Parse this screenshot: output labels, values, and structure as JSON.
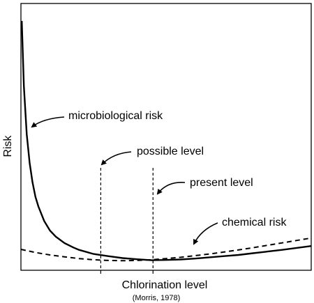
{
  "chart_data": {
    "type": "line",
    "title": "",
    "xlabel": "Chlorination level",
    "ylabel": "Risk",
    "source_note": "(Morris, 1978)",
    "grid": false,
    "axis_ticks": false,
    "xlim": [
      0,
      100
    ],
    "ylim": [
      0,
      100
    ],
    "series": [
      {
        "name": "microbiological risk",
        "style": "solid",
        "color": "#000000",
        "x": [
          0.3,
          1,
          2,
          3,
          4,
          5,
          6,
          8,
          10,
          12,
          15,
          18,
          20,
          25,
          30,
          35,
          40,
          45,
          50,
          55,
          60,
          65,
          70,
          75,
          80,
          85,
          90,
          95,
          100
        ],
        "y": [
          100,
          73,
          53,
          41,
          33,
          27,
          23,
          17,
          13,
          10.5,
          7.8,
          6,
          5,
          3.3,
          2.4,
          1.6,
          1.1,
          0.7,
          0.8,
          1,
          1.4,
          1.9,
          2.4,
          2.9,
          3.6,
          4.3,
          5,
          5.8,
          6.6
        ]
      },
      {
        "name": "chemical risk",
        "style": "dashed",
        "color": "#000000",
        "x": [
          0,
          5,
          10,
          15,
          20,
          25,
          30,
          35,
          40,
          45,
          50,
          55,
          60,
          65,
          70,
          75,
          80,
          85,
          90,
          95,
          100
        ],
        "y": [
          5.2,
          3.9,
          2.9,
          2.1,
          1.4,
          0.9,
          0.6,
          0.5,
          0.6,
          0.9,
          1.4,
          1.9,
          2.6,
          3.3,
          4.1,
          5,
          5.9,
          6.9,
          7.9,
          8.9,
          9.9
        ]
      }
    ],
    "reference_lines": [
      {
        "label": "possible level",
        "style": "dashed",
        "x": 27.5,
        "y_top": 39
      },
      {
        "label": "present level",
        "style": "dashed",
        "x": 45.5,
        "y_top": 39
      }
    ],
    "annotations": [
      {
        "text": "microbiological risk",
        "target_series": "microbiological risk"
      },
      {
        "text": "possible level",
        "target": "possible level line"
      },
      {
        "text": "present level",
        "target": "present level line"
      },
      {
        "text": "chemical risk",
        "target_series": "chemical risk"
      }
    ]
  }
}
